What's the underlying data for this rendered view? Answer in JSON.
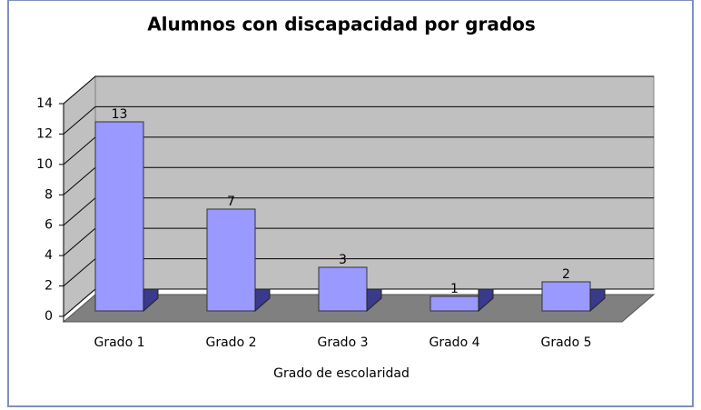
{
  "chart_data": {
    "type": "bar",
    "title": "Alumnos con discapacidad por grados",
    "x_label": "Grado de escolaridad",
    "categories": [
      "Grado 1",
      "Grado 2",
      "Grado 3",
      "Grado 4",
      "Grado 5"
    ],
    "values": [
      13,
      7,
      3,
      1,
      2
    ],
    "color": "#9999ff",
    "ylim": [
      0,
      14
    ],
    "yticks": [
      0,
      2,
      4,
      6,
      8,
      10,
      12,
      14
    ],
    "grid": true
  }
}
